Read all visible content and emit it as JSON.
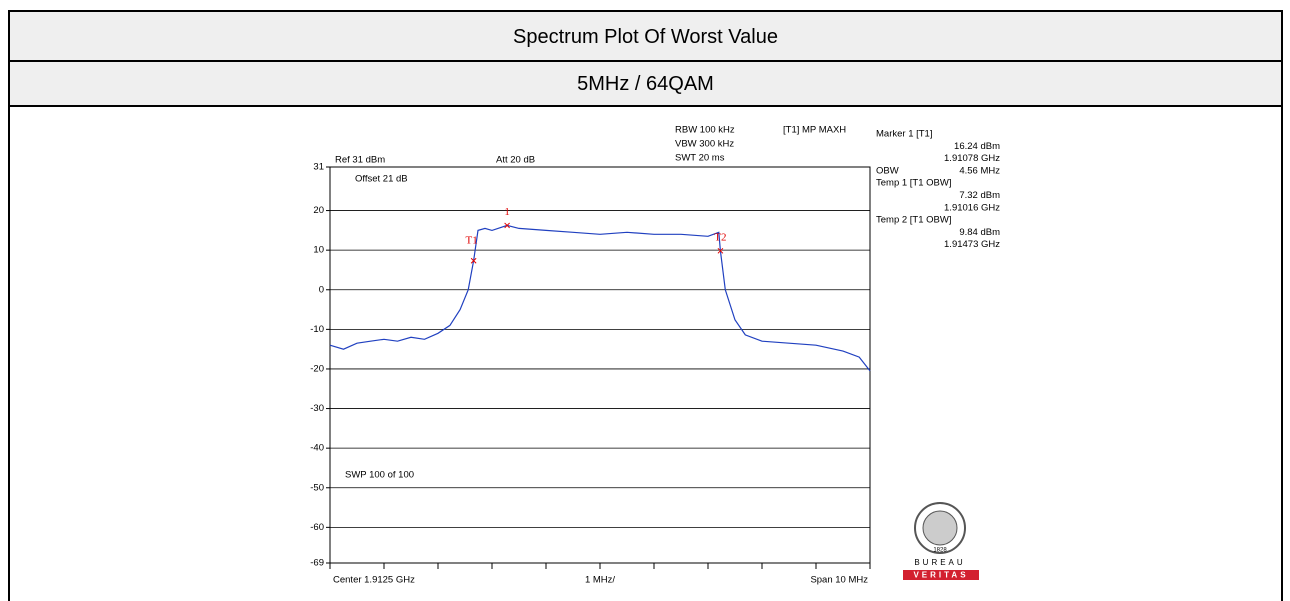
{
  "header": {
    "title": "Spectrum Plot Of Worst Value",
    "subtitle": "5MHz / 64QAM"
  },
  "chart_data": {
    "type": "line",
    "color": "#2040c0",
    "marker_color": "#e00000",
    "x": [
      1.9075,
      1.90775,
      1.908,
      1.90825,
      1.9085,
      1.90875,
      1.909,
      1.90925,
      1.9095,
      1.90972,
      1.90991,
      1.91006,
      1.91016,
      1.91024,
      1.91037,
      1.9105,
      1.91078,
      1.911,
      1.9115,
      1.912,
      1.9125,
      1.913,
      1.9135,
      1.914,
      1.9145,
      1.9147,
      1.91473,
      1.91482,
      1.915,
      1.91519,
      1.9155,
      1.916,
      1.9165,
      1.917,
      1.9173,
      1.9175
    ],
    "values": [
      -14,
      -15,
      -13.5,
      -13,
      -12.5,
      -13,
      -12,
      -12.5,
      -11,
      -9,
      -5,
      0,
      7.32,
      15,
      15.5,
      15,
      16.24,
      15.5,
      15,
      14.5,
      14,
      14.5,
      14,
      14,
      13.5,
      14.5,
      9.84,
      0,
      -7.6,
      -11.4,
      -13,
      -13.5,
      -14,
      -15.5,
      -17,
      -20.5
    ],
    "xlim": [
      1.9075,
      1.9175
    ],
    "ylim": [
      -69,
      31
    ],
    "yticks": [
      31,
      20,
      10,
      0,
      -10,
      -20,
      -30,
      -40,
      -50,
      -60,
      -69
    ],
    "grid": true,
    "markers": [
      {
        "label": "1",
        "x": 1.91078,
        "y": 16.24
      },
      {
        "label": "T1",
        "x": 1.91016,
        "y": 7.32
      },
      {
        "label": "T2",
        "x": 1.91473,
        "y": 9.84
      }
    ],
    "settings": {
      "rbw": "RBW 100 kHz",
      "vbw": "VBW 300 kHz",
      "swt": "SWT 20 ms",
      "trace": "[T1] MP MAXH",
      "ref": "Ref 31 dBm",
      "att": "Att 20 dB",
      "offset": "Offset 21 dB",
      "sweep": "SWP 100 of 100"
    },
    "x_labels": {
      "center": "Center 1.9125 GHz",
      "div": "1 MHz/",
      "span": "Span 10 MHz"
    },
    "marker_info": [
      {
        "left": "Marker 1 [T1]"
      },
      {
        "right": "16.24 dBm"
      },
      {
        "right": "1.91078 GHz"
      },
      {
        "left": "OBW",
        "right": "4.56 MHz"
      },
      {
        "left": "Temp 1 [T1 OBW]"
      },
      {
        "right": "7.32 dBm"
      },
      {
        "right": "1.91016 GHz"
      },
      {
        "left": "Temp 2 [T1 OBW]"
      },
      {
        "right": "9.84 dBm"
      },
      {
        "right": "1.91473 GHz"
      }
    ]
  },
  "logo": {
    "year": "1828",
    "top": "BUREAU",
    "bottom": "VERITAS"
  }
}
